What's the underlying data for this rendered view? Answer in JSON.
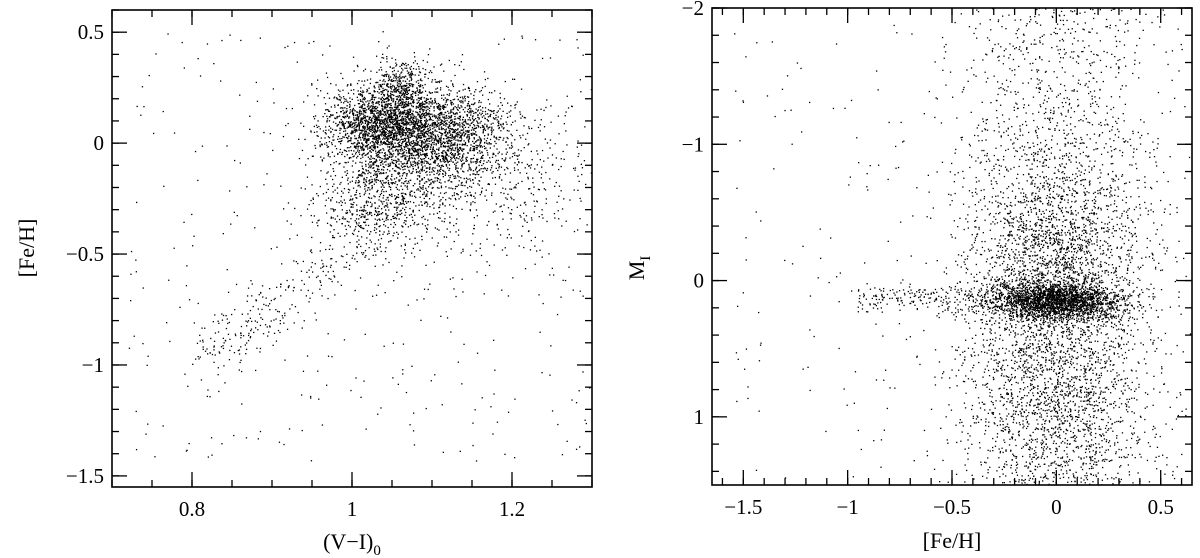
{
  "chart_data": [
    {
      "type": "scatter",
      "title": "",
      "xlabel": "(V−I)",
      "xlabel_subscript": "0",
      "ylabel": "[Fe/H]",
      "xlim": [
        0.7,
        1.3
      ],
      "ylim": [
        -1.55,
        0.6
      ],
      "xticks_major": [
        0.8,
        1.0,
        1.2
      ],
      "xtick_labels": [
        "0.8",
        "1",
        "1.2"
      ],
      "yticks_major": [
        0.5,
        0,
        -0.5,
        -1,
        -1.5
      ],
      "ytick_labels": [
        "0.5",
        "0",
        "−0.5",
        "−1",
        "−1.5"
      ],
      "grid": false,
      "legend": "none",
      "point_color": "#000000",
      "clusters": [
        {
          "x": 1.035,
          "y": 0.08,
          "sx": 0.035,
          "sy": 0.09,
          "n": 1400
        },
        {
          "x": 1.06,
          "y": 0.22,
          "sx": 0.018,
          "sy": 0.09,
          "n": 500
        },
        {
          "x": 1.09,
          "y": 0.0,
          "sx": 0.05,
          "sy": 0.12,
          "n": 1500
        },
        {
          "x": 1.13,
          "y": 0.08,
          "sx": 0.035,
          "sy": 0.1,
          "n": 500
        },
        {
          "x": 1.03,
          "y": -0.28,
          "sx": 0.04,
          "sy": 0.1,
          "n": 500
        },
        {
          "x": 1.15,
          "y": -0.15,
          "sx": 0.09,
          "sy": 0.2,
          "n": 700
        }
      ],
      "trail": {
        "x_from": 0.82,
        "x_to": 1.0,
        "y_from": -0.98,
        "y_to": -0.45,
        "spread": 0.06,
        "n": 260
      },
      "field": {
        "xlim": [
          0.72,
          1.3
        ],
        "ylim": [
          -1.45,
          0.5
        ],
        "n": 350
      }
    },
    {
      "type": "scatter",
      "title": "",
      "xlabel": "[Fe/H]",
      "ylabel": "M",
      "ylabel_subscript": "I",
      "xlim": [
        -1.65,
        0.65
      ],
      "ylim": [
        1.5,
        -2.0
      ],
      "y_inverted": true,
      "xticks_major": [
        -1.5,
        -1.0,
        -0.5,
        0,
        0.5
      ],
      "xtick_labels": [
        "−1.5",
        "−1",
        "−0.5",
        "0",
        "0.5"
      ],
      "yticks_major": [
        -2,
        -1,
        0,
        1
      ],
      "ytick_labels": [
        "−2",
        "−1",
        "0",
        "1"
      ],
      "grid": false,
      "legend": "none",
      "point_color": "#000000",
      "clusters": [
        {
          "x": 0.0,
          "y": 0.15,
          "sx": 0.16,
          "sy": 0.07,
          "n": 2200
        },
        {
          "x": 0.0,
          "y": -0.2,
          "sx": 0.2,
          "sy": 0.4,
          "n": 1600
        },
        {
          "x": 0.0,
          "y": 0.8,
          "sx": 0.2,
          "sy": 0.5,
          "n": 1500
        }
      ],
      "band": {
        "x_from": -0.95,
        "x_to": -0.15,
        "y": 0.12,
        "sy": 0.05,
        "n": 250
      },
      "column": {
        "x_center": 0.0,
        "sx": 0.27,
        "y_from": -2.0,
        "y_to": 1.5,
        "n": 1900
      },
      "field": {
        "xlim": [
          -1.55,
          0.6
        ],
        "ylim": [
          -1.9,
          1.45
        ],
        "n": 240
      }
    }
  ]
}
